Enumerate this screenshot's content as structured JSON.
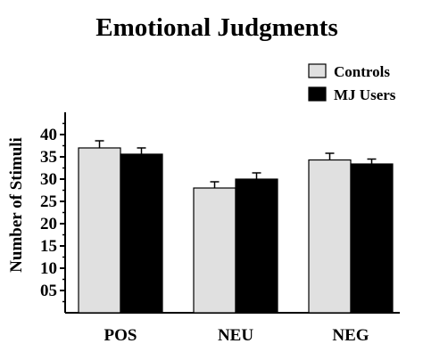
{
  "chart_data": {
    "type": "bar",
    "title": "Emotional Judgments",
    "xlabel": "",
    "ylabel": "Number of Stimuli",
    "categories": [
      "POS",
      "NEU",
      "NEG"
    ],
    "ylim": [
      0,
      45
    ],
    "yticks": [
      "05",
      "10",
      "15",
      "20",
      "25",
      "30",
      "35",
      "40"
    ],
    "ytick_values": [
      5,
      10,
      15,
      20,
      25,
      30,
      35,
      40
    ],
    "series": [
      {
        "name": "Controls",
        "values": [
          37.0,
          28.0,
          34.3
        ],
        "errors": [
          1.6,
          1.4,
          1.5
        ],
        "color": "#e0e0e0"
      },
      {
        "name": "MJ Users",
        "values": [
          35.6,
          30.0,
          33.4
        ],
        "errors": [
          1.4,
          1.4,
          1.1
        ],
        "color": "#000000"
      }
    ],
    "legend_position": "top-right",
    "grid": false
  }
}
